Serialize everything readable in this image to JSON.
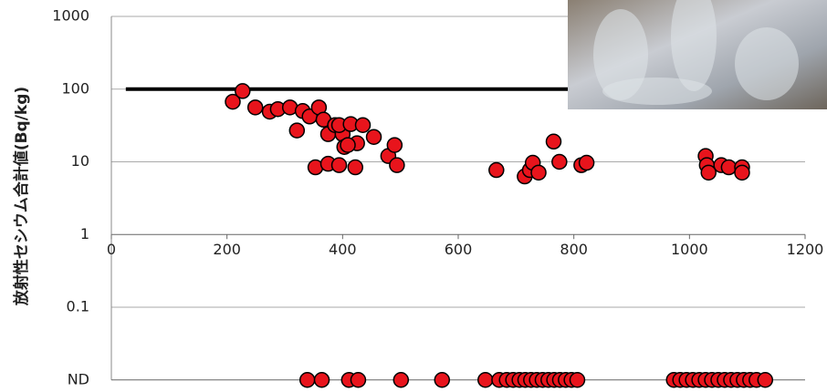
{
  "chart_data": {
    "type": "scatter",
    "y_label": "放射性セシウム合計値(Bq/kg)",
    "log_y": true,
    "xlim": [
      0,
      1200
    ],
    "xticks": [
      0,
      200,
      400,
      600,
      800,
      1000,
      1200
    ],
    "ylim": [
      0.1,
      1000
    ],
    "yticks": [
      0.1,
      1,
      10,
      100,
      1000
    ],
    "grid": true,
    "reference_line": {
      "y": 100,
      "x": [
        25,
        1200
      ],
      "color": "#000000"
    },
    "series": [
      {
        "color": "#e8141c",
        "x": [
          210,
          227,
          249,
          274,
          288,
          309,
          321,
          331,
          343,
          359,
          353,
          367,
          375,
          375,
          387,
          394,
          400,
          403,
          394,
          414,
          422,
          425,
          409,
          435,
          454,
          479,
          490,
          494,
          666,
          715,
          724,
          729,
          739,
          765,
          775,
          813,
          822,
          1028,
          1030,
          1033,
          1055,
          1068,
          1091,
          1091
        ],
        "values": [
          67,
          94,
          56,
          49,
          53,
          56,
          27,
          50,
          42,
          56,
          8.4,
          38,
          24,
          9.4,
          32,
          9,
          24,
          16,
          32,
          33,
          8.4,
          18,
          17,
          32,
          22,
          12,
          17,
          9,
          7.7,
          6.3,
          7.7,
          9.7,
          7.1,
          19,
          10,
          9,
          9.7,
          12,
          9,
          7.1,
          9,
          8.4,
          8.4,
          7.1
        ]
      }
    ],
    "nd_label": "ND",
    "nd_x": [
      339,
      364,
      411,
      427,
      501,
      572,
      647,
      671,
      684,
      695,
      706,
      716,
      726,
      736,
      746,
      756,
      766,
      776,
      786,
      796,
      806,
      973,
      984,
      995,
      1006,
      1017,
      1028,
      1039,
      1050,
      1061,
      1072,
      1083,
      1094,
      1105,
      1116,
      1131
    ]
  }
}
